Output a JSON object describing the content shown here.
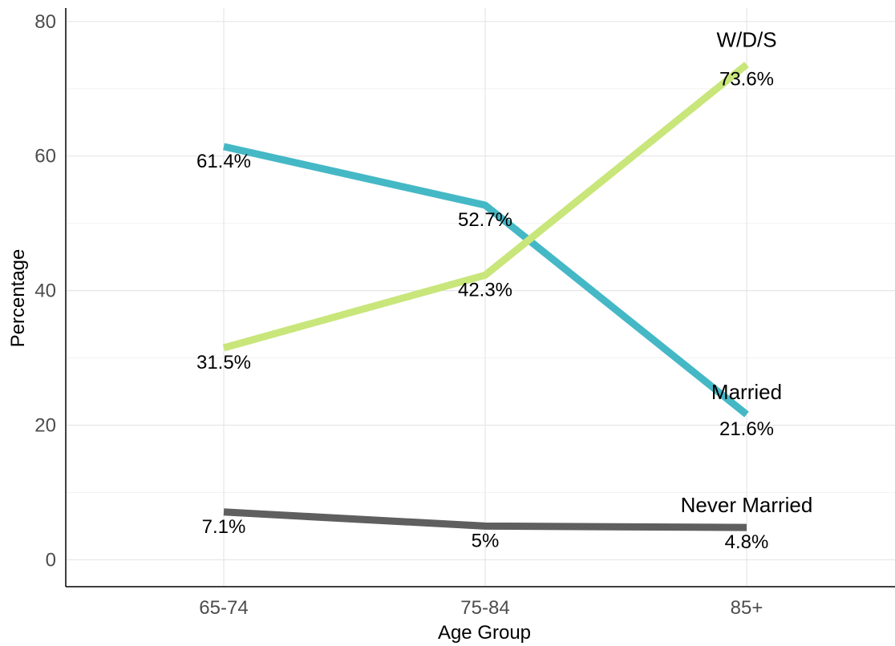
{
  "chart_data": {
    "type": "line",
    "title": "",
    "xlabel": "Age Group",
    "ylabel": "Percentage",
    "categories": [
      "65-74",
      "75-84",
      "85+"
    ],
    "ylim": [
      -4,
      82
    ],
    "yticks": [
      0,
      20,
      40,
      60,
      80
    ],
    "grid": true,
    "legend": "none",
    "series": [
      {
        "name": "Married",
        "color": "#45B8C6",
        "values": [
          61.4,
          52.7,
          21.6
        ],
        "labels": [
          "61.4%",
          "52.7%",
          "21.6%"
        ]
      },
      {
        "name": "W/D/S",
        "color": "#C8E67A",
        "values": [
          31.5,
          42.3,
          73.6
        ],
        "labels": [
          "31.5%",
          "42.3%",
          "73.6%"
        ]
      },
      {
        "name": "Never Married",
        "color": "#5F5F5F",
        "values": [
          7.1,
          5.0,
          4.8
        ],
        "labels": [
          "7.1%",
          "5%",
          "4.8%"
        ]
      }
    ]
  }
}
